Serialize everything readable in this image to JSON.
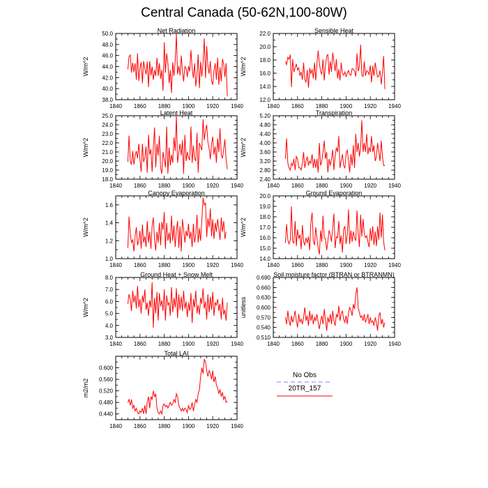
{
  "figure": {
    "title": "Central Canada (50-62N,100-80W)",
    "line_color": "#ff0000",
    "obs_color": "#9999ff"
  },
  "legend": {
    "entries": [
      {
        "label": "No Obs",
        "style": "dashed",
        "color": "#9999ff"
      },
      {
        "label": "20TR_157",
        "style": "solid",
        "color": "#ff0000"
      }
    ]
  },
  "chart_data": [
    {
      "type": "line",
      "title": "Net Radiation",
      "ylabel": "W/m^2",
      "xlim": [
        1840,
        1940
      ],
      "xticks": [
        1840,
        1860,
        1880,
        1900,
        1920,
        1940
      ],
      "ylim": [
        38.0,
        50.0
      ],
      "yticks": [
        "38.0",
        "40.0",
        "42.0",
        "44.0",
        "46.0",
        "48.0",
        "50.0"
      ],
      "x_start": 1850,
      "series": [
        {
          "values": [
            43.5,
            45.8,
            46.1,
            42.9,
            44.7,
            43.0,
            44.6,
            41.6,
            46.4,
            41.4,
            43.8,
            44.8,
            41.0,
            45.0,
            43.6,
            42.6,
            44.9,
            40.3,
            45.0,
            42.4,
            44.0,
            41.6,
            43.4,
            42.3,
            45.6,
            42.3,
            44.6,
            41.8,
            43.4,
            39.6,
            48.4,
            42.9,
            46.4,
            44.6,
            41.0,
            43.4,
            39.2,
            44.8,
            42.3,
            45.0,
            49.9,
            42.6,
            44.1,
            42.4,
            46.0,
            43.2,
            41.3,
            44.0,
            43.7,
            42.1,
            44.1,
            43.1,
            47.0,
            43.7,
            41.9,
            44.6,
            40.4,
            42.7,
            46.2,
            40.1,
            44.9,
            42.2,
            44.8,
            49.1,
            41.9,
            47.7,
            44.1,
            42.7,
            45.0,
            41.4,
            40.7,
            43.2,
            44.6,
            41.6,
            45.6,
            40.7,
            43.9,
            41.3,
            45.4,
            44.4,
            42.1,
            44.6,
            38.6
          ]
        }
      ]
    },
    {
      "type": "line",
      "title": "Sensible Heat",
      "ylabel": "W/m^2",
      "xlim": [
        1840,
        1940
      ],
      "xticks": [
        1840,
        1860,
        1880,
        1900,
        1920,
        1940
      ],
      "ylim": [
        12.0,
        22.0
      ],
      "yticks": [
        "12.0",
        "14.0",
        "16.0",
        "18.0",
        "20.0",
        "22.0"
      ],
      "x_start": 1850,
      "series": [
        {
          "values": [
            17.8,
            17.3,
            18.4,
            18.1,
            18.8,
            13.9,
            18.1,
            16.2,
            16.8,
            17.4,
            16.5,
            16.8,
            15.6,
            16.2,
            15.0,
            17.6,
            15.1,
            14.6,
            16.5,
            13.8,
            16.8,
            15.9,
            16.6,
            15.2,
            17.6,
            14.9,
            17.5,
            19.4,
            17.5,
            16.3,
            15.8,
            18.1,
            14.9,
            17.1,
            18.6,
            18.8,
            15.8,
            17.8,
            16.2,
            19.1,
            17.7,
            16.3,
            18.1,
            15.2,
            16.6,
            14.9,
            17.6,
            16.0,
            15.7,
            16.2,
            15.5,
            16.0,
            16.4,
            15.8,
            15.7,
            16.7,
            16.6,
            16.3,
            15.5,
            19.0,
            16.3,
            17.0,
            20.3,
            15.7,
            15.5,
            17.8,
            15.6,
            16.4,
            16.2,
            15.8,
            17.2,
            14.6,
            17.1,
            15.6,
            17.6,
            16.5,
            15.4,
            15.6,
            16.4,
            14.3,
            16.1,
            18.6,
            13.6
          ]
        }
      ]
    },
    {
      "type": "line",
      "title": "Latent Heat",
      "ylabel": "W/m^2",
      "xlim": [
        1840,
        1940
      ],
      "xticks": [
        1840,
        1860,
        1880,
        1900,
        1920,
        1940
      ],
      "ylim": [
        18.0,
        25.0
      ],
      "yticks": [
        "18.0",
        "19.0",
        "20.0",
        "21.0",
        "22.0",
        "23.0",
        "24.0",
        "25.0"
      ],
      "x_start": 1850,
      "series": [
        {
          "values": [
            19.9,
            22.8,
            20.0,
            19.6,
            21.1,
            19.6,
            20.6,
            21.1,
            20.3,
            21.9,
            20.2,
            18.8,
            21.9,
            19.9,
            20.4,
            21.6,
            18.7,
            22.9,
            20.7,
            21.3,
            18.8,
            21.4,
            23.7,
            19.3,
            21.9,
            20.6,
            22.8,
            19.2,
            18.6,
            21.0,
            20.2,
            19.3,
            23.8,
            18.6,
            21.5,
            19.5,
            20.7,
            19.8,
            22.6,
            21.1,
            25.0,
            19.8,
            20.9,
            21.9,
            20.6,
            22.3,
            18.6,
            22.9,
            20.0,
            21.0,
            20.4,
            20.1,
            23.8,
            19.8,
            21.7,
            20.3,
            20.0,
            23.1,
            18.7,
            22.0,
            21.6,
            21.2,
            24.6,
            22.3,
            23.4,
            24.0,
            22.1,
            21.4,
            20.2,
            21.9,
            22.7,
            20.7,
            21.6,
            19.8,
            22.5,
            21.0,
            23.6,
            20.7,
            20.3,
            21.3,
            22.4,
            20.2,
            19.1
          ]
        }
      ]
    },
    {
      "type": "line",
      "title": "Transpiration",
      "ylabel": "W/m^2",
      "xlim": [
        1840,
        1940
      ],
      "xticks": [
        1840,
        1860,
        1880,
        1900,
        1920,
        1940
      ],
      "ylim": [
        2.4,
        5.2
      ],
      "yticks": [
        "2.40",
        "2.80",
        "3.20",
        "3.60",
        "4.00",
        "4.40",
        "4.80",
        "5.20"
      ],
      "x_start": 1850,
      "series": [
        {
          "values": [
            3.3,
            4.2,
            3.1,
            2.9,
            2.8,
            3.1,
            3.0,
            3.3,
            2.8,
            3.4,
            3.3,
            2.9,
            2.9,
            2.8,
            3.1,
            3.6,
            2.9,
            3.2,
            3.4,
            3.0,
            3.2,
            3.1,
            3.5,
            2.9,
            3.3,
            2.9,
            3.3,
            2.7,
            4.0,
            3.0,
            3.2,
            3.6,
            4.1,
            3.3,
            3.6,
            2.7,
            3.3,
            3.0,
            3.3,
            3.7,
            2.8,
            3.4,
            3.8,
            3.6,
            4.3,
            2.9,
            3.2,
            3.5,
            3.0,
            2.9,
            3.5,
            3.7,
            3.2,
            2.7,
            3.5,
            3.0,
            3.9,
            2.9,
            4.4,
            3.6,
            4.0,
            3.4,
            3.8,
            5.0,
            3.6,
            4.0,
            3.6,
            4.4,
            3.5,
            3.8,
            3.6,
            4.3,
            3.6,
            3.9,
            3.2,
            3.4,
            4.0,
            3.6,
            3.2,
            4.1,
            3.4,
            3.0,
            3.0
          ]
        }
      ]
    },
    {
      "type": "line",
      "title": "Canopy Evaporation",
      "ylabel": "W/m^2",
      "xlim": [
        1840,
        1940
      ],
      "xticks": [
        1840,
        1860,
        1880,
        1900,
        1920,
        1940
      ],
      "ylim": [
        1.0,
        1.7
      ],
      "yticks": [
        "1.0",
        "1.2",
        "1.4",
        "1.6"
      ],
      "x_start": 1850,
      "series": [
        {
          "values": [
            1.12,
            1.47,
            1.28,
            1.18,
            1.21,
            1.08,
            1.25,
            1.35,
            1.15,
            1.2,
            1.31,
            1.11,
            1.38,
            1.18,
            1.25,
            1.13,
            1.42,
            1.18,
            1.3,
            1.11,
            1.36,
            1.46,
            1.21,
            1.09,
            1.3,
            1.18,
            1.4,
            1.15,
            1.41,
            1.32,
            1.52,
            1.11,
            1.4,
            1.2,
            1.29,
            1.17,
            1.48,
            1.2,
            1.37,
            1.13,
            1.31,
            1.42,
            1.12,
            1.36,
            1.08,
            1.44,
            1.33,
            1.18,
            1.31,
            1.25,
            1.39,
            1.22,
            1.3,
            1.13,
            1.39,
            1.18,
            1.26,
            1.49,
            1.18,
            1.34,
            1.2,
            1.43,
            1.68,
            1.6,
            1.62,
            1.24,
            1.45,
            1.35,
            1.56,
            1.25,
            1.44,
            1.22,
            1.4,
            1.3,
            1.44,
            1.34,
            1.21,
            1.46,
            1.3,
            1.42,
            1.22,
            1.3
          ]
        }
      ]
    },
    {
      "type": "line",
      "title": "Ground Evaporation",
      "ylabel": "W/m^2",
      "xlim": [
        1840,
        1940
      ],
      "xticks": [
        1840,
        1860,
        1880,
        1900,
        1920,
        1940
      ],
      "ylim": [
        14.0,
        20.0
      ],
      "yticks": [
        "14.0",
        "15.0",
        "16.0",
        "17.0",
        "18.0",
        "19.0",
        "20.0"
      ],
      "x_start": 1850,
      "series": [
        {
          "values": [
            15.5,
            17.3,
            15.8,
            15.4,
            15.8,
            19.0,
            15.6,
            15.5,
            17.6,
            15.2,
            16.8,
            15.9,
            16.3,
            14.9,
            17.2,
            15.6,
            15.3,
            16.0,
            15.5,
            16.1,
            14.8,
            17.4,
            18.4,
            15.7,
            15.3,
            17.0,
            16.0,
            15.0,
            14.4,
            16.7,
            15.6,
            18.1,
            16.0,
            15.9,
            14.8,
            15.7,
            16.7,
            16.3,
            15.6,
            17.0,
            18.3,
            15.0,
            16.1,
            16.0,
            17.6,
            15.4,
            16.2,
            14.6,
            16.8,
            17.1,
            15.4,
            16.3,
            18.7,
            15.4,
            16.7,
            15.6,
            16.6,
            16.0,
            15.7,
            18.6,
            16.4,
            15.1,
            18.2,
            16.1,
            17.8,
            16.4,
            16.0,
            16.2,
            15.6,
            15.1,
            16.9,
            15.7,
            17.1,
            15.3,
            16.6,
            15.2,
            17.1,
            15.8,
            18.4,
            16.0,
            18.2,
            15.6,
            14.8
          ]
        }
      ]
    },
    {
      "type": "line",
      "title": "Ground Heat + Snow Melt",
      "ylabel": "W/m^2",
      "xlim": [
        1840,
        1940
      ],
      "xticks": [
        1840,
        1860,
        1880,
        1900,
        1920,
        1940
      ],
      "ylim": [
        3.0,
        8.0
      ],
      "yticks": [
        "3.0",
        "4.0",
        "5.0",
        "6.0",
        "7.0",
        "8.0"
      ],
      "x_start": 1850,
      "series": [
        {
          "values": [
            5.8,
            6.6,
            6.2,
            5.2,
            6.9,
            5.9,
            6.5,
            5.4,
            7.3,
            5.5,
            6.2,
            5.0,
            6.5,
            5.9,
            7.0,
            5.3,
            5.9,
            4.8,
            6.1,
            5.5,
            7.6,
            3.8,
            6.3,
            5.0,
            6.8,
            4.4,
            6.7,
            5.6,
            6.1,
            5.2,
            7.0,
            4.4,
            6.5,
            5.7,
            5.9,
            4.8,
            7.2,
            5.1,
            6.3,
            5.5,
            7.1,
            4.6,
            6.6,
            5.3,
            6.4,
            5.2,
            6.9,
            5.4,
            6.0,
            4.7,
            5.9,
            5.2,
            6.7,
            4.2,
            6.2,
            5.5,
            6.9,
            5.0,
            5.7,
            4.9,
            6.3,
            5.8,
            7.1,
            5.4,
            6.0,
            4.5,
            6.6,
            5.1,
            6.4,
            5.3,
            6.8,
            4.8,
            5.9,
            5.7,
            6.2,
            5.2,
            5.8,
            4.5,
            6.3,
            4.9,
            5.3,
            4.4,
            5.9
          ]
        }
      ]
    },
    {
      "type": "line",
      "title": "Soil moisture factor (BTRAN or BTRANMN)",
      "ylabel": "unitless",
      "xlim": [
        1840,
        1940
      ],
      "xticks": [
        1840,
        1860,
        1880,
        1900,
        1920,
        1940
      ],
      "ylim": [
        0.51,
        0.69
      ],
      "yticks": [
        "0.510",
        "0.540",
        "0.570",
        "0.600",
        "0.630",
        "0.660",
        "0.690"
      ],
      "x_start": 1850,
      "series": [
        {
          "values": [
            0.57,
            0.55,
            0.59,
            0.56,
            0.545,
            0.575,
            0.555,
            0.57,
            0.59,
            0.56,
            0.54,
            0.58,
            0.555,
            0.565,
            0.55,
            0.57,
            0.6,
            0.56,
            0.575,
            0.545,
            0.59,
            0.56,
            0.58,
            0.55,
            0.57,
            0.56,
            0.58,
            0.555,
            0.535,
            0.56,
            0.575,
            0.55,
            0.595,
            0.565,
            0.53,
            0.57,
            0.555,
            0.58,
            0.55,
            0.59,
            0.56,
            0.545,
            0.58,
            0.57,
            0.605,
            0.56,
            0.58,
            0.59,
            0.565,
            0.555,
            0.575,
            0.55,
            0.585,
            0.6,
            0.59,
            0.575,
            0.61,
            0.595,
            0.64,
            0.66,
            0.6,
            0.585,
            0.57,
            0.575,
            0.56,
            0.58,
            0.555,
            0.565,
            0.58,
            0.55,
            0.57,
            0.555,
            0.56,
            0.545,
            0.57,
            0.555,
            0.53,
            0.575,
            0.585,
            0.55,
            0.565,
            0.54,
            0.555
          ]
        }
      ]
    },
    {
      "type": "line",
      "title": "Total LAI",
      "ylabel": "m2/m2",
      "xlim": [
        1840,
        1940
      ],
      "xticks": [
        1840,
        1860,
        1880,
        1900,
        1920,
        1940
      ],
      "ylim": [
        0.42,
        0.64
      ],
      "yticks": [
        "0.440",
        "0.480",
        "0.520",
        "0.560",
        "0.600"
      ],
      "x_start": 1850,
      "series": [
        {
          "values": [
            0.48,
            0.49,
            0.47,
            0.49,
            0.46,
            0.47,
            0.45,
            0.46,
            0.445,
            0.44,
            0.45,
            0.445,
            0.46,
            0.44,
            0.47,
            0.44,
            0.48,
            0.5,
            0.46,
            0.5,
            0.49,
            0.52,
            0.5,
            0.51,
            0.46,
            0.445,
            0.44,
            0.45,
            0.44,
            0.47,
            0.475,
            0.465,
            0.47,
            0.46,
            0.47,
            0.48,
            0.47,
            0.475,
            0.49,
            0.48,
            0.51,
            0.5,
            0.47,
            0.46,
            0.45,
            0.46,
            0.45,
            0.46,
            0.455,
            0.445,
            0.47,
            0.455,
            0.46,
            0.48,
            0.45,
            0.47,
            0.49,
            0.48,
            0.51,
            0.525,
            0.57,
            0.6,
            0.58,
            0.63,
            0.62,
            0.59,
            0.57,
            0.59,
            0.58,
            0.56,
            0.59,
            0.55,
            0.57,
            0.54,
            0.53,
            0.51,
            0.525,
            0.5,
            0.515,
            0.49,
            0.5,
            0.48,
            0.485
          ]
        }
      ]
    }
  ]
}
